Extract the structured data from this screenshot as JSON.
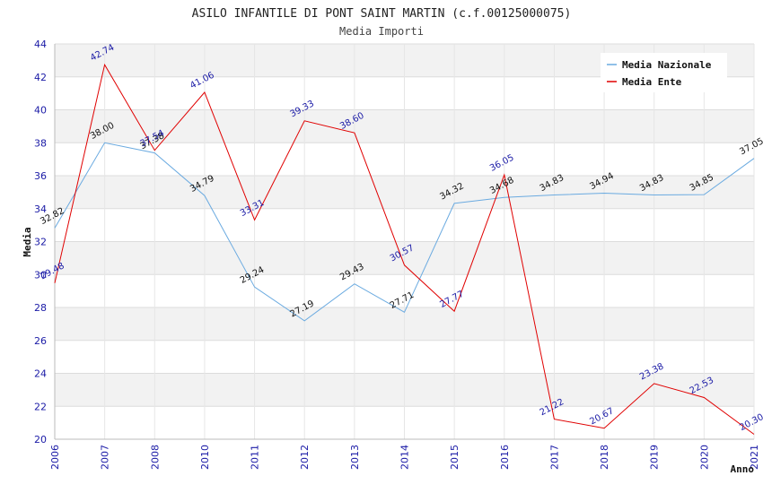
{
  "chart_data": {
    "type": "line",
    "title": "ASILO INFANTILE DI PONT SAINT MARTIN (c.f.00125000075)",
    "subtitle": "Media Importi",
    "xlabel": "Anno",
    "ylabel": "Media",
    "ylim": [
      20,
      44
    ],
    "ytick_step": 2,
    "grid": true,
    "legend_position": "top-right",
    "categories": [
      "2006",
      "2007",
      "2008",
      "2010",
      "2011",
      "2012",
      "2013",
      "2014",
      "2015",
      "2016",
      "2017",
      "2018",
      "2019",
      "2020",
      "2021"
    ],
    "series": [
      {
        "name": "Media Nazionale",
        "color": "#6aaae0",
        "values": [
          32.82,
          38.0,
          37.38,
          34.79,
          29.24,
          27.19,
          29.43,
          27.71,
          34.32,
          34.68,
          34.83,
          34.94,
          34.83,
          34.85,
          37.05
        ],
        "labels": [
          "32.82",
          "38.00",
          "37.38",
          "34.79",
          "29.24",
          "27.19",
          "29.43",
          "27.71",
          "34.32",
          "34.68",
          "34.83",
          "34.94",
          "34.83",
          "34.85",
          "37.05"
        ]
      },
      {
        "name": "Media Ente",
        "color": "#e00000",
        "values": [
          29.48,
          42.74,
          37.54,
          41.06,
          33.31,
          39.33,
          38.6,
          30.57,
          27.77,
          36.05,
          21.22,
          20.67,
          23.38,
          22.53,
          20.3
        ],
        "labels": [
          "29.48",
          "42.74",
          "37.54",
          "41.06",
          "33.31",
          "39.33",
          "38.60",
          "30.57",
          "27.77",
          "36.05",
          "21.22",
          "20.67",
          "23.38",
          "22.53",
          "20.30"
        ]
      }
    ]
  }
}
